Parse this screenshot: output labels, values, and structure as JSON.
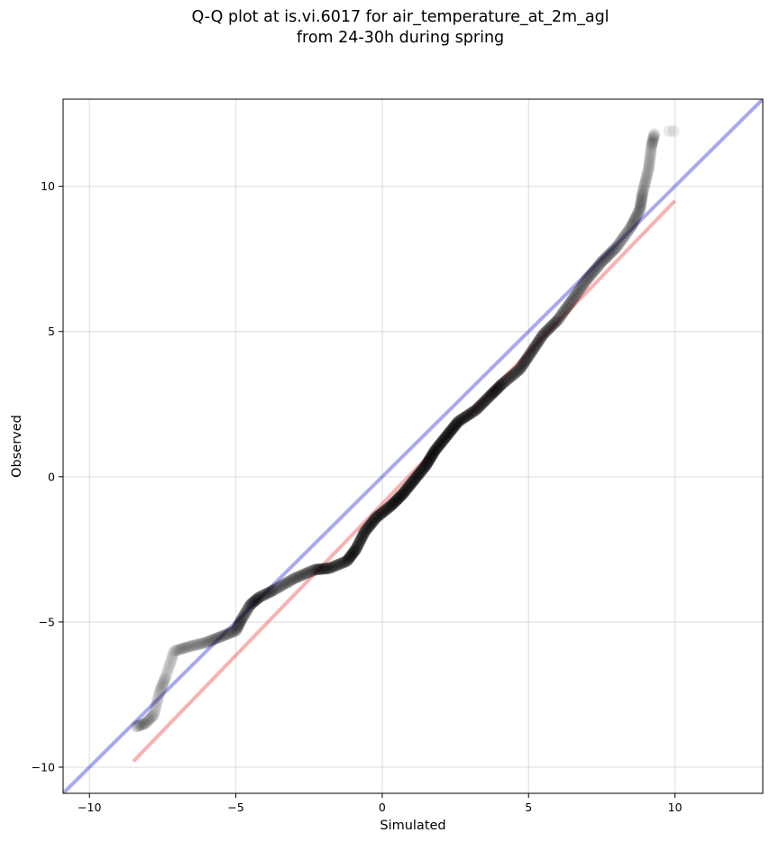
{
  "chart_data": {
    "type": "scatter",
    "title_line1": "Q-Q plot at is.vi.6017 for air_temperature_at_2m_agl",
    "title_line2": "from 24-30h during spring",
    "xlabel": "Simulated",
    "ylabel": "Observed",
    "xlim": [
      -10.9,
      13.0
    ],
    "ylim": [
      -10.9,
      13.0
    ],
    "xticks": [
      -10,
      -5,
      0,
      5,
      10
    ],
    "yticks": [
      -10,
      -5,
      0,
      5,
      10
    ],
    "xtick_labels": [
      "−10",
      "−5",
      "0",
      "5",
      "10"
    ],
    "ytick_labels": [
      "−10",
      "−5",
      "0",
      "5",
      "10"
    ],
    "grid": true,
    "colors": {
      "points": "#000000",
      "identity_line": "#3333dd",
      "fit_line": "#ee4444"
    },
    "reference_lines": [
      {
        "kind": "identity",
        "x": [
          -10.9,
          13.0
        ],
        "y": [
          -10.9,
          13.0
        ]
      },
      {
        "kind": "fit",
        "x": [
          -8.5,
          10.0
        ],
        "y": [
          -9.8,
          9.5
        ]
      }
    ],
    "quantile_curve": [
      [
        -8.4,
        -8.6
      ],
      [
        -8.1,
        -8.5
      ],
      [
        -7.8,
        -8.2
      ],
      [
        -7.6,
        -7.4
      ],
      [
        -7.4,
        -6.9
      ],
      [
        -7.1,
        -6.0
      ],
      [
        -6.6,
        -5.85
      ],
      [
        -6.0,
        -5.7
      ],
      [
        -5.5,
        -5.5
      ],
      [
        -5.0,
        -5.3
      ],
      [
        -4.8,
        -4.9
      ],
      [
        -4.5,
        -4.4
      ],
      [
        -4.2,
        -4.15
      ],
      [
        -3.7,
        -3.9
      ],
      [
        -3.0,
        -3.5
      ],
      [
        -2.3,
        -3.2
      ],
      [
        -1.8,
        -3.15
      ],
      [
        -1.2,
        -2.9
      ],
      [
        -0.9,
        -2.5
      ],
      [
        -0.6,
        -1.9
      ],
      [
        -0.2,
        -1.4
      ],
      [
        0.3,
        -1.0
      ],
      [
        0.7,
        -0.6
      ],
      [
        1.1,
        -0.1
      ],
      [
        1.5,
        0.4
      ],
      [
        1.8,
        0.9
      ],
      [
        2.2,
        1.4
      ],
      [
        2.6,
        1.9
      ],
      [
        3.2,
        2.3
      ],
      [
        3.7,
        2.8
      ],
      [
        4.1,
        3.2
      ],
      [
        4.7,
        3.7
      ],
      [
        5.1,
        4.3
      ],
      [
        5.5,
        4.9
      ],
      [
        6.0,
        5.4
      ],
      [
        6.5,
        6.1
      ],
      [
        7.0,
        6.8
      ],
      [
        7.5,
        7.4
      ],
      [
        8.0,
        7.9
      ],
      [
        8.5,
        8.6
      ],
      [
        8.8,
        9.2
      ],
      [
        8.9,
        9.8
      ],
      [
        9.1,
        10.6
      ],
      [
        9.2,
        11.4
      ],
      [
        9.3,
        11.8
      ]
    ],
    "upper_outliers": [
      [
        9.8,
        11.9
      ],
      [
        9.95,
        11.9
      ]
    ]
  }
}
